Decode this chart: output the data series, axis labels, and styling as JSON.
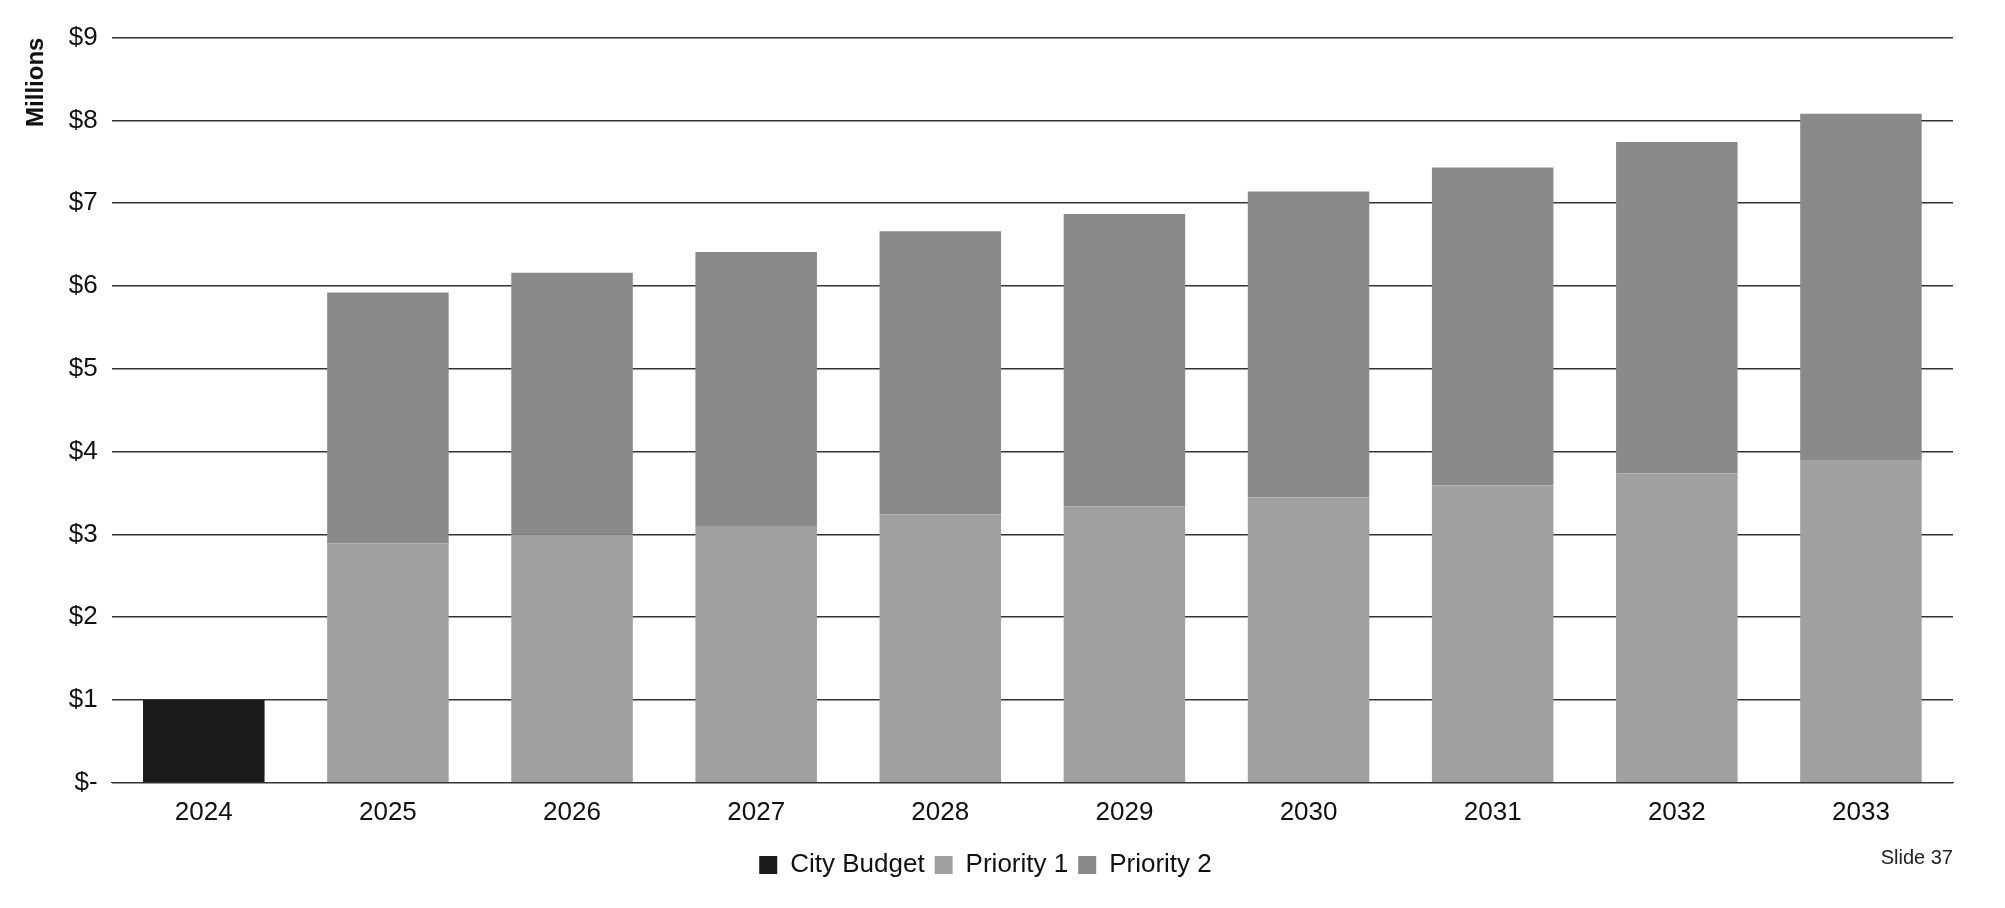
{
  "chart_data": {
    "type": "bar",
    "stacked": true,
    "ylabel": "Millions",
    "categories": [
      "2024",
      "2025",
      "2026",
      "2027",
      "2028",
      "2029",
      "2030",
      "2031",
      "2032",
      "2033"
    ],
    "series": [
      {
        "name": "City Budget",
        "color": "#1a1a1a",
        "values": [
          1.0,
          null,
          null,
          null,
          null,
          null,
          null,
          null,
          null,
          null
        ]
      },
      {
        "name": "Priority 1",
        "color": "#a0a0a0",
        "values": [
          null,
          2.89,
          3.0,
          3.1,
          3.24,
          3.34,
          3.45,
          3.59,
          3.74,
          3.89
        ]
      },
      {
        "name": "Priority 2",
        "color": "#8a8a8a",
        "values": [
          null,
          3.03,
          3.16,
          3.31,
          3.42,
          3.53,
          3.69,
          3.84,
          4.0,
          4.19
        ]
      }
    ],
    "ylim": [
      0,
      9
    ],
    "yticks": [
      {
        "value": 0,
        "label": "$-"
      },
      {
        "value": 1,
        "label": "$1"
      },
      {
        "value": 2,
        "label": "$2"
      },
      {
        "value": 3,
        "label": "$3"
      },
      {
        "value": 4,
        "label": "$4"
      },
      {
        "value": 5,
        "label": "$5"
      },
      {
        "value": 6,
        "label": "$6"
      },
      {
        "value": 7,
        "label": "$7"
      },
      {
        "value": 8,
        "label": "$8"
      },
      {
        "value": 9,
        "label": "$9"
      }
    ],
    "grid": "y",
    "legend": "bottom",
    "annotations": [
      "Slide 37"
    ]
  }
}
